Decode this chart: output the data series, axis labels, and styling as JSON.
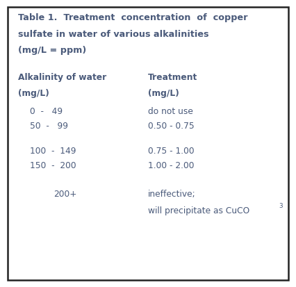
{
  "title_line1": "Table 1.  Treatment  concentration  of  copper",
  "title_line2": "sulfate in water of various alkalinities",
  "title_line3": "(mg/L = ppm)",
  "col1_header_line1": "Alkalinity of water",
  "col1_header_line2": "(mg/L)",
  "col2_header_line1": "Treatment",
  "col2_header_line2": "(mg/L)",
  "rows": [
    {
      "alk": "0  -   49",
      "treat": "do not use"
    },
    {
      "alk": "50  -   99",
      "treat": "0.50 - 0.75"
    },
    {
      "alk": "100  -  149",
      "treat": "0.75 - 1.00"
    },
    {
      "alk": "150  -  200",
      "treat": "1.00 - 2.00"
    },
    {
      "alk": "200+",
      "treat_line1": "ineffective;",
      "treat_line2_base": "will precipitate as CuCO",
      "treat_line2_sub": "3"
    }
  ],
  "bg_color": "#ffffff",
  "text_color": "#4a5a7a",
  "border_color": "#222222",
  "font_size_title": 9.2,
  "font_size_body": 8.8
}
